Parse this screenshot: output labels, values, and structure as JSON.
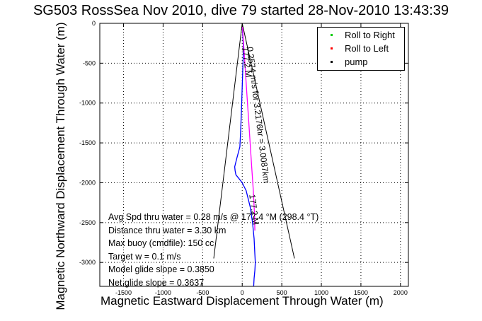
{
  "chart_data": {
    "type": "line",
    "title": "SG503 RossSea Nov 2010, dive 79 started 28-Nov-2010 13:43:39",
    "xlabel": "Magnetic Eastward Displacement Through Water (m)",
    "ylabel": "Magnetic Northward Displacement Through Water (m)",
    "xlim": [
      -1800,
      2100
    ],
    "ylim": [
      -3300,
      0
    ],
    "x_ticks": [
      -1500,
      -1000,
      -500,
      0,
      500,
      1000,
      1500,
      2000
    ],
    "y_ticks": [
      0,
      -500,
      -1000,
      -1500,
      -2000,
      -2500,
      -3000
    ],
    "grid": true,
    "legend_position": "top-right",
    "legend": [
      {
        "name": "Roll to Right",
        "color": "#00cc00"
      },
      {
        "name": "Roll to Left",
        "color": "#ff0000"
      },
      {
        "name": "pump",
        "color": "#000000"
      }
    ],
    "series": [
      {
        "name": "track-blue",
        "color": "#0000ff",
        "x": [
          0,
          5,
          15,
          10,
          0,
          -10,
          -20,
          -30,
          -70,
          -95,
          -90,
          -80,
          -40,
          0,
          50,
          100,
          130,
          150,
          160,
          165,
          160,
          150,
          145
        ],
        "y": [
          0,
          -120,
          -300,
          -500,
          -800,
          -1100,
          -1350,
          -1550,
          -1700,
          -1800,
          -1850,
          -1900,
          -1950,
          -2000,
          -2100,
          -2300,
          -2500,
          -2700,
          -2900,
          -3000,
          -3100,
          -3200,
          -3300
        ]
      },
      {
        "name": "track-magenta",
        "color": "#ff00ff",
        "x": [
          0,
          20,
          40,
          60,
          80,
          100,
          120,
          140,
          155,
          160
        ],
        "y": [
          0,
          -300,
          -600,
          -900,
          -1200,
          -1500,
          -1800,
          -2100,
          -2400,
          -2600
        ]
      },
      {
        "name": "cone-left",
        "color": "#000000",
        "x": [
          0,
          -360
        ],
        "y": [
          0,
          -2950
        ]
      },
      {
        "name": "cone-right",
        "color": "#000000",
        "x": [
          0,
          660
        ],
        "y": [
          0,
          -2950
        ]
      }
    ],
    "annotations": [
      {
        "text": "177.2 M",
        "x": 0,
        "y": -300,
        "angle": 83
      },
      {
        "text": "0.2574 m/s for 3.2176hr = 3.0087km",
        "x": 60,
        "y": -300,
        "angle": 83
      },
      {
        "text": "177.2 M",
        "x": 90,
        "y": -2150,
        "angle": 83
      }
    ],
    "stats": [
      "Avg Spd thru water = 0.28 m/s @ 177.4 °M (298.4 °T)",
      "Distance thru water = 3.30 km",
      "Max buoy (cmdfile): 150 cc",
      "Target w = 0.1 m/s",
      "Model glide slope = 0.3850",
      "Net glide slope = 0.3637"
    ]
  }
}
